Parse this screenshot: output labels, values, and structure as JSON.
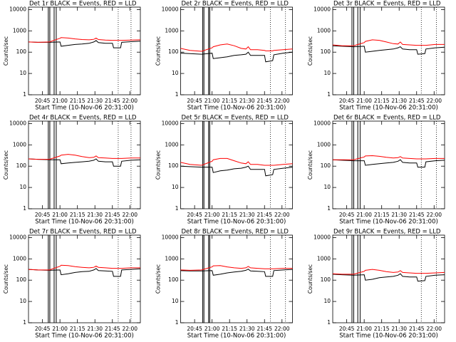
{
  "chart_data": [
    {
      "type": "line",
      "title": "Det 1r  BLACK = Events, RED = LLD",
      "x_label": "Start Time (10-Nov-06 20:31:00)",
      "y_label": "Counts/sec",
      "log_y": true,
      "x": [
        2,
        10,
        20,
        29,
        30,
        36,
        42,
        48,
        54,
        58,
        60,
        62,
        68,
        74,
        75,
        81,
        82,
        90,
        98
      ],
      "xlim": [
        2,
        98
      ],
      "xticks": [
        {
          "value": 14,
          "label": "20:45"
        },
        {
          "value": 29,
          "label": "21:00"
        },
        {
          "value": 44,
          "label": "21:15"
        },
        {
          "value": 59,
          "label": "21:30"
        },
        {
          "value": 74,
          "label": "21:45"
        },
        {
          "value": 89,
          "label": "22:00"
        }
      ],
      "ylim": [
        1,
        13000
      ],
      "yticks": [
        1,
        10,
        100,
        1000,
        10000
      ],
      "solid_lines_x": [
        19,
        20.3,
        24,
        25.8
      ],
      "dotted_lines_x": [
        79,
        90
      ],
      "series": [
        {
          "color": "#000000",
          "values": [
            300,
            290,
            290,
            300,
            190,
            210,
            230,
            240,
            260,
            300,
            350,
            280,
            260,
            260,
            160,
            160,
            290,
            310,
            330
          ]
        },
        {
          "color": "#ff0000",
          "values": [
            300,
            290,
            300,
            450,
            480,
            460,
            420,
            390,
            380,
            400,
            460,
            390,
            370,
            360,
            360,
            360,
            360,
            370,
            380
          ]
        }
      ]
    },
    {
      "type": "line",
      "title": "Det 2r  BLACK = Events, RED = LLD",
      "x_label": "Start Time (10-Nov-06 20:31:00)",
      "y_label": "Counts/sec",
      "log_y": true,
      "x": [
        2,
        10,
        20,
        29,
        30,
        36,
        42,
        48,
        54,
        58,
        60,
        62,
        68,
        74,
        75,
        81,
        82,
        90,
        98
      ],
      "xlim": [
        2,
        98
      ],
      "xticks": [
        {
          "value": 14,
          "label": "20:45"
        },
        {
          "value": 29,
          "label": "21:00"
        },
        {
          "value": 44,
          "label": "21:15"
        },
        {
          "value": 59,
          "label": "21:30"
        },
        {
          "value": 74,
          "label": "21:45"
        },
        {
          "value": 89,
          "label": "22:00"
        }
      ],
      "ylim": [
        1,
        13000
      ],
      "yticks": [
        1,
        10,
        100,
        1000,
        10000
      ],
      "solid_lines_x": [
        21,
        22,
        26,
        27
      ],
      "dotted_lines_x": [
        79,
        92
      ],
      "series": [
        {
          "color": "#000000",
          "values": [
            90,
            85,
            80,
            90,
            50,
            55,
            60,
            70,
            75,
            80,
            100,
            70,
            70,
            70,
            35,
            40,
            75,
            90,
            100
          ]
        },
        {
          "color": "#ff0000",
          "values": [
            150,
            120,
            110,
            160,
            180,
            220,
            240,
            200,
            150,
            140,
            180,
            130,
            130,
            120,
            115,
            115,
            120,
            130,
            140
          ]
        }
      ]
    },
    {
      "type": "line",
      "title": "Det 3r  BLACK = Events, RED = LLD",
      "x_label": "Start Time (10-Nov-06 20:31:00)",
      "y_label": "Counts/sec",
      "log_y": true,
      "x": [
        2,
        10,
        20,
        29,
        30,
        36,
        42,
        48,
        54,
        58,
        60,
        62,
        68,
        74,
        75,
        81,
        82,
        90,
        98
      ],
      "xlim": [
        2,
        98
      ],
      "xticks": [
        {
          "value": 14,
          "label": "20:45"
        },
        {
          "value": 29,
          "label": "21:00"
        },
        {
          "value": 44,
          "label": "21:15"
        },
        {
          "value": 59,
          "label": "21:30"
        },
        {
          "value": 74,
          "label": "21:45"
        },
        {
          "value": 89,
          "label": "22:00"
        }
      ],
      "ylim": [
        1,
        13000
      ],
      "yticks": [
        1,
        10,
        100,
        1000,
        10000
      ],
      "solid_lines_x": [
        18.5,
        20,
        23.5,
        25.5
      ],
      "dotted_lines_x": [
        78,
        91
      ],
      "series": [
        {
          "color": "#000000",
          "values": [
            200,
            190,
            180,
            190,
            100,
            110,
            120,
            130,
            140,
            160,
            180,
            140,
            130,
            130,
            80,
            85,
            140,
            160,
            170
          ]
        },
        {
          "color": "#ff0000",
          "values": [
            220,
            200,
            200,
            280,
            320,
            380,
            360,
            300,
            250,
            240,
            300,
            230,
            220,
            210,
            210,
            210,
            210,
            230,
            230
          ]
        }
      ]
    },
    {
      "type": "line",
      "title": "Det 4r  BLACK = Events, RED = LLD",
      "x_label": "Start Time (10-Nov-06 20:31:00)",
      "y_label": "Counts/sec",
      "log_y": true,
      "x": [
        2,
        10,
        20,
        29,
        30,
        36,
        42,
        48,
        54,
        58,
        60,
        62,
        68,
        74,
        75,
        81,
        82,
        90,
        98
      ],
      "xlim": [
        2,
        98
      ],
      "xticks": [
        {
          "value": 14,
          "label": "20:45"
        },
        {
          "value": 29,
          "label": "21:00"
        },
        {
          "value": 44,
          "label": "21:15"
        },
        {
          "value": 59,
          "label": "21:30"
        },
        {
          "value": 74,
          "label": "21:45"
        },
        {
          "value": 89,
          "label": "22:00"
        }
      ],
      "ylim": [
        1,
        13000
      ],
      "yticks": [
        1,
        10,
        100,
        1000,
        10000
      ],
      "solid_lines_x": [
        19,
        20.3,
        24,
        25.8
      ],
      "dotted_lines_x": [
        79,
        90
      ],
      "series": [
        {
          "color": "#000000",
          "values": [
            220,
            210,
            200,
            200,
            130,
            140,
            150,
            160,
            170,
            190,
            220,
            170,
            160,
            160,
            100,
            100,
            170,
            190,
            200
          ]
        },
        {
          "color": "#ff0000",
          "values": [
            220,
            210,
            210,
            300,
            330,
            360,
            330,
            280,
            250,
            260,
            300,
            250,
            240,
            230,
            230,
            230,
            230,
            240,
            240
          ]
        }
      ]
    },
    {
      "type": "line",
      "title": "Det 5r  BLACK = Events, RED = LLD",
      "x_label": "Start Time (10-Nov-06 20:31:00)",
      "y_label": "Counts/sec",
      "log_y": true,
      "x": [
        2,
        10,
        20,
        29,
        30,
        36,
        42,
        48,
        54,
        58,
        60,
        62,
        68,
        74,
        75,
        81,
        82,
        90,
        98
      ],
      "xlim": [
        2,
        98
      ],
      "xticks": [
        {
          "value": 14,
          "label": "20:45"
        },
        {
          "value": 29,
          "label": "21:00"
        },
        {
          "value": 44,
          "label": "21:15"
        },
        {
          "value": 59,
          "label": "21:30"
        },
        {
          "value": 74,
          "label": "21:45"
        },
        {
          "value": 89,
          "label": "22:00"
        }
      ],
      "ylim": [
        1,
        13000
      ],
      "yticks": [
        1,
        10,
        100,
        1000,
        10000
      ],
      "solid_lines_x": [
        21,
        22,
        26,
        27
      ],
      "dotted_lines_x": [
        79,
        92
      ],
      "series": [
        {
          "color": "#000000",
          "values": [
            100,
            95,
            90,
            90,
            50,
            60,
            65,
            75,
            80,
            90,
            100,
            70,
            70,
            70,
            35,
            40,
            70,
            80,
            90
          ]
        },
        {
          "color": "#ff0000",
          "values": [
            150,
            120,
            110,
            170,
            200,
            230,
            230,
            180,
            140,
            130,
            160,
            120,
            120,
            110,
            110,
            110,
            110,
            120,
            130
          ]
        }
      ]
    },
    {
      "type": "line",
      "title": "Det 6r  BLACK = Events, RED = LLD",
      "x_label": "Start Time (10-Nov-06 20:31:00)",
      "y_label": "Counts/sec",
      "log_y": true,
      "x": [
        2,
        10,
        20,
        29,
        30,
        36,
        42,
        48,
        54,
        58,
        60,
        62,
        68,
        74,
        75,
        81,
        82,
        90,
        98
      ],
      "xlim": [
        2,
        98
      ],
      "xticks": [
        {
          "value": 14,
          "label": "20:45"
        },
        {
          "value": 29,
          "label": "21:00"
        },
        {
          "value": 44,
          "label": "21:15"
        },
        {
          "value": 59,
          "label": "21:30"
        },
        {
          "value": 74,
          "label": "21:45"
        },
        {
          "value": 89,
          "label": "22:00"
        }
      ],
      "ylim": [
        1,
        13000
      ],
      "yticks": [
        1,
        10,
        100,
        1000,
        10000
      ],
      "solid_lines_x": [
        18.5,
        20,
        23.5,
        25.5
      ],
      "dotted_lines_x": [
        78,
        91
      ],
      "series": [
        {
          "color": "#000000",
          "values": [
            200,
            190,
            180,
            180,
            110,
            120,
            130,
            140,
            150,
            170,
            200,
            150,
            140,
            140,
            90,
            90,
            160,
            180,
            190
          ]
        },
        {
          "color": "#ff0000",
          "values": [
            200,
            200,
            200,
            270,
            300,
            310,
            290,
            260,
            240,
            250,
            280,
            240,
            230,
            220,
            220,
            220,
            220,
            230,
            230
          ]
        }
      ]
    },
    {
      "type": "line",
      "title": "Det 7r  BLACK = Events, RED = LLD",
      "x_label": "Start Time (10-Nov-06 20:31:00)",
      "y_label": "Counts/sec",
      "log_y": true,
      "x": [
        2,
        10,
        20,
        29,
        30,
        36,
        42,
        48,
        54,
        58,
        60,
        62,
        68,
        74,
        75,
        81,
        82,
        90,
        98
      ],
      "xlim": [
        2,
        98
      ],
      "xticks": [
        {
          "value": 14,
          "label": "20:45"
        },
        {
          "value": 29,
          "label": "21:00"
        },
        {
          "value": 44,
          "label": "21:15"
        },
        {
          "value": 59,
          "label": "21:30"
        },
        {
          "value": 74,
          "label": "21:45"
        },
        {
          "value": 89,
          "label": "22:00"
        }
      ],
      "ylim": [
        1,
        13000
      ],
      "yticks": [
        1,
        10,
        100,
        1000,
        10000
      ],
      "solid_lines_x": [
        19,
        20.3,
        24,
        25.8
      ],
      "dotted_lines_x": [
        79,
        90
      ],
      "series": [
        {
          "color": "#000000",
          "values": [
            320,
            300,
            290,
            300,
            180,
            200,
            230,
            250,
            260,
            300,
            350,
            280,
            270,
            260,
            150,
            150,
            300,
            320,
            340
          ]
        },
        {
          "color": "#ff0000",
          "values": [
            320,
            300,
            300,
            450,
            500,
            480,
            430,
            400,
            380,
            400,
            460,
            400,
            380,
            360,
            360,
            360,
            360,
            380,
            380
          ]
        }
      ]
    },
    {
      "type": "line",
      "title": "Det 8r  BLACK = Events, RED = LLD",
      "x_label": "Start Time (10-Nov-06 20:31:00)",
      "y_label": "Counts/sec",
      "log_y": true,
      "x": [
        2,
        10,
        20,
        29,
        30,
        36,
        42,
        48,
        54,
        58,
        60,
        62,
        68,
        74,
        75,
        81,
        82,
        90,
        98
      ],
      "xlim": [
        2,
        98
      ],
      "xticks": [
        {
          "value": 14,
          "label": "20:45"
        },
        {
          "value": 29,
          "label": "21:00"
        },
        {
          "value": 44,
          "label": "21:15"
        },
        {
          "value": 59,
          "label": "21:30"
        },
        {
          "value": 74,
          "label": "21:45"
        },
        {
          "value": 89,
          "label": "22:00"
        }
      ],
      "ylim": [
        1,
        13000
      ],
      "yticks": [
        1,
        10,
        100,
        1000,
        10000
      ],
      "solid_lines_x": [
        21,
        22,
        26,
        27
      ],
      "dotted_lines_x": [
        79,
        92
      ],
      "series": [
        {
          "color": "#000000",
          "values": [
            280,
            270,
            270,
            280,
            170,
            190,
            220,
            240,
            260,
            290,
            330,
            270,
            260,
            250,
            150,
            150,
            280,
            300,
            320
          ]
        },
        {
          "color": "#ff0000",
          "values": [
            300,
            290,
            300,
            420,
            470,
            480,
            420,
            380,
            360,
            380,
            440,
            380,
            360,
            340,
            340,
            340,
            340,
            360,
            360
          ]
        }
      ]
    },
    {
      "type": "line",
      "title": "Det 9r  BLACK = Events, RED = LLD",
      "x_label": "Start Time (10-Nov-06 20:31:00)",
      "y_label": "Counts/sec",
      "log_y": true,
      "x": [
        2,
        10,
        20,
        29,
        30,
        36,
        42,
        48,
        54,
        58,
        60,
        62,
        68,
        74,
        75,
        81,
        82,
        90,
        98
      ],
      "xlim": [
        2,
        98
      ],
      "xticks": [
        {
          "value": 14,
          "label": "20:45"
        },
        {
          "value": 29,
          "label": "21:00"
        },
        {
          "value": 44,
          "label": "21:15"
        },
        {
          "value": 59,
          "label": "21:30"
        },
        {
          "value": 74,
          "label": "21:45"
        },
        {
          "value": 89,
          "label": "22:00"
        }
      ],
      "ylim": [
        1,
        13000
      ],
      "yticks": [
        1,
        10,
        100,
        1000,
        10000
      ],
      "solid_lines_x": [
        18.5,
        20,
        23.5,
        25.5
      ],
      "dotted_lines_x": [
        78,
        91
      ],
      "series": [
        {
          "color": "#000000",
          "values": [
            190,
            180,
            170,
            180,
            100,
            110,
            130,
            140,
            150,
            170,
            200,
            150,
            140,
            140,
            90,
            95,
            150,
            170,
            180
          ]
        },
        {
          "color": "#ff0000",
          "values": [
            200,
            190,
            190,
            260,
            290,
            320,
            290,
            250,
            230,
            240,
            280,
            230,
            220,
            210,
            210,
            210,
            210,
            220,
            230
          ]
        }
      ]
    }
  ]
}
